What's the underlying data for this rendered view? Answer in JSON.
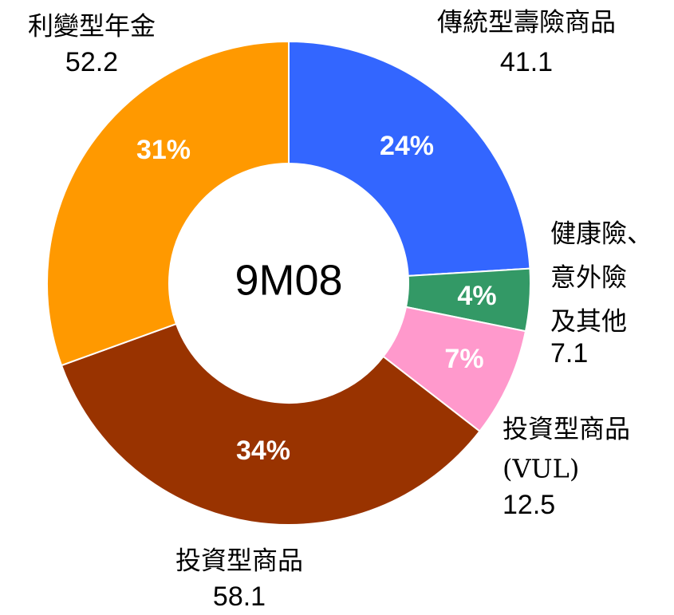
{
  "chart_data": {
    "type": "donut",
    "center_label": "9M08",
    "categories": [
      [
        "傳統型壽險商品"
      ],
      [
        "健康險、",
        "意外險",
        "及其他"
      ],
      [
        "投資型商品",
        "(VUL)"
      ],
      [
        "投資型商品"
      ],
      [
        "利變型年金"
      ]
    ],
    "values": [
      41.1,
      7.1,
      12.5,
      58.1,
      52.2
    ],
    "percent_labels": [
      "24%",
      "4%",
      "7%",
      "34%",
      "31%"
    ],
    "colors": [
      "#3366ff",
      "#339966",
      "#ff99cc",
      "#993300",
      "#ff9900"
    ]
  }
}
